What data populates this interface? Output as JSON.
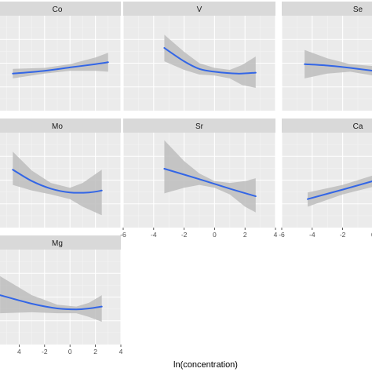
{
  "chart_data": {
    "type": "line",
    "xlabel": "ln(concentration)",
    "xlim": [
      -6,
      4
    ],
    "x_ticks": [
      -6,
      -4,
      -2,
      0,
      2,
      4
    ],
    "x_tick_labels": [
      "-6",
      "-4",
      "-2",
      "0",
      "2",
      "4"
    ],
    "x_tick_labels_mg": [
      "4",
      "-2",
      "0",
      "2",
      "4"
    ],
    "ylim": [
      0,
      1
    ],
    "colors": {
      "line": "#3366e6",
      "ribbon": "#bdbdbd",
      "panel": "#ebebeb",
      "strip": "#d9d9d9",
      "grid_major": "#ffffff",
      "grid_minor": "#f4f4f4"
    },
    "panels": [
      {
        "label": "Co",
        "fit": [
          [
            -4.5,
            0.39
          ],
          [
            -2,
            0.42
          ],
          [
            0,
            0.455
          ],
          [
            2,
            0.49
          ],
          [
            3,
            0.51
          ]
        ],
        "ribbon": [
          [
            -4.5,
            0.44,
            0.34
          ],
          [
            -2,
            0.45,
            0.39
          ],
          [
            0,
            0.49,
            0.42
          ],
          [
            2,
            0.56,
            0.42
          ],
          [
            3,
            0.61,
            0.41
          ]
        ]
      },
      {
        "label": "V",
        "fit": [
          [
            -3.3,
            0.66
          ],
          [
            -2,
            0.52
          ],
          [
            -1,
            0.44
          ],
          [
            0,
            0.41
          ],
          [
            1.5,
            0.39
          ],
          [
            2.7,
            0.4
          ]
        ],
        "ribbon": [
          [
            -3.3,
            0.8,
            0.52
          ],
          [
            -2,
            0.62,
            0.43
          ],
          [
            -1,
            0.5,
            0.38
          ],
          [
            0,
            0.45,
            0.37
          ],
          [
            1,
            0.43,
            0.34
          ],
          [
            1.8,
            0.48,
            0.27
          ],
          [
            2.7,
            0.57,
            0.24
          ]
        ]
      },
      {
        "label": "Se",
        "fit": [
          [
            -4.5,
            0.49
          ],
          [
            -3,
            0.475
          ],
          [
            -1.5,
            0.45
          ],
          [
            0,
            0.42
          ]
        ],
        "ribbon": [
          [
            -4.5,
            0.64,
            0.34
          ],
          [
            -3,
            0.55,
            0.39
          ],
          [
            -1.5,
            0.49,
            0.41
          ],
          [
            0,
            0.47,
            0.37
          ]
        ]
      },
      {
        "label": "Mo",
        "fit": [
          [
            -4.5,
            0.61
          ],
          [
            -3,
            0.49
          ],
          [
            -1.5,
            0.41
          ],
          [
            0,
            0.37
          ],
          [
            1.5,
            0.37
          ],
          [
            2.5,
            0.39
          ]
        ],
        "ribbon": [
          [
            -4.5,
            0.8,
            0.45
          ],
          [
            -3,
            0.6,
            0.39
          ],
          [
            -1.5,
            0.47,
            0.35
          ],
          [
            0,
            0.42,
            0.3
          ],
          [
            1,
            0.47,
            0.22
          ],
          [
            2.5,
            0.61,
            0.13
          ]
        ]
      },
      {
        "label": "Sr",
        "fit": [
          [
            -3.3,
            0.62
          ],
          [
            -1,
            0.51
          ],
          [
            1,
            0.41
          ],
          [
            2.7,
            0.33
          ]
        ],
        "ribbon": [
          [
            -3.3,
            0.92,
            0.36
          ],
          [
            -2,
            0.7,
            0.42
          ],
          [
            -1,
            0.57,
            0.45
          ],
          [
            0,
            0.49,
            0.42
          ],
          [
            1,
            0.47,
            0.35
          ],
          [
            2,
            0.49,
            0.22
          ],
          [
            2.7,
            0.52,
            0.16
          ]
        ]
      },
      {
        "label": "Ca",
        "fit": [
          [
            -4.3,
            0.3
          ],
          [
            -2,
            0.4
          ],
          [
            0,
            0.49
          ],
          [
            1.5,
            0.56
          ]
        ],
        "ribbon": [
          [
            -4.3,
            0.37,
            0.22
          ],
          [
            -2,
            0.45,
            0.35
          ],
          [
            0,
            0.55,
            0.43
          ],
          [
            1.5,
            0.66,
            0.47
          ]
        ]
      },
      {
        "label": "Mg",
        "fit": [
          [
            -5.5,
            0.52
          ],
          [
            -3,
            0.43
          ],
          [
            -1,
            0.38
          ],
          [
            0.5,
            0.37
          ],
          [
            1.5,
            0.38
          ],
          [
            2.5,
            0.4
          ]
        ],
        "ribbon": [
          [
            -5.5,
            0.72,
            0.33
          ],
          [
            -3,
            0.52,
            0.34
          ],
          [
            -1,
            0.42,
            0.33
          ],
          [
            0.5,
            0.4,
            0.33
          ],
          [
            1.5,
            0.44,
            0.29
          ],
          [
            2.5,
            0.52,
            0.24
          ]
        ]
      }
    ]
  }
}
